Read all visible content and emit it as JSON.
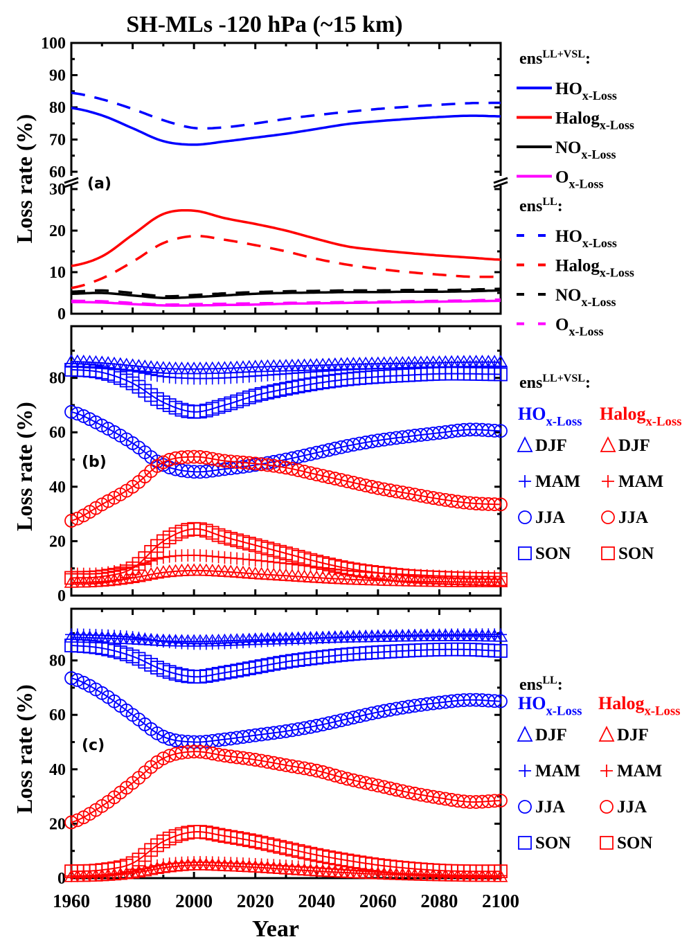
{
  "title": "SH-MLs  -120 hPa (~15 km)",
  "colors": {
    "HOx": "#0000ff",
    "Halog": "#ff0000",
    "NOx": "#000000",
    "Ox": "#ff00ff",
    "axis": "#000000"
  },
  "chart_data": [
    {
      "id": "a",
      "panel_label": "(a)",
      "type": "line",
      "xlabel": "",
      "ylabel": "Loss rate (%)",
      "xlim": [
        1960,
        2100
      ],
      "x_ticks": [
        1960,
        1980,
        2000,
        2020,
        2040,
        2060,
        2080,
        2100
      ],
      "broken_axis": true,
      "ylim_lower": [
        0,
        30
      ],
      "ylim_upper": [
        60,
        100
      ],
      "y_ticks_lower": [
        0,
        10,
        20,
        30
      ],
      "y_ticks_upper": [
        60,
        70,
        80,
        90,
        100
      ],
      "x": [
        1960,
        1970,
        1980,
        1990,
        2000,
        2010,
        2020,
        2030,
        2040,
        2050,
        2060,
        2070,
        2080,
        2090,
        2100
      ],
      "legend_groups": [
        {
          "title": "ens",
          "sup": "LL+VSL",
          "colon": ":",
          "dash": "solid"
        },
        {
          "title": "ens",
          "sup": "LL",
          "colon": ":",
          "dash": "dashed"
        }
      ],
      "series": [
        {
          "name": "HOx-Loss",
          "label_main": "HO",
          "label_sub": "x-Loss",
          "group": "ens LL+VSL",
          "color_key": "HOx",
          "dash": "solid",
          "values": [
            79.8,
            77.5,
            73.5,
            69.5,
            68.4,
            69.4,
            70.6,
            71.8,
            73.3,
            74.8,
            75.7,
            76.4,
            77.0,
            77.4,
            77.2
          ]
        },
        {
          "name": "Halogx-Loss",
          "label_main": "Halog",
          "label_sub": "x-Loss",
          "group": "ens LL+VSL",
          "color_key": "Halog",
          "dash": "solid",
          "values": [
            11.5,
            13.8,
            19.0,
            24.0,
            24.8,
            23.0,
            21.6,
            20.0,
            18.0,
            16.2,
            15.3,
            14.6,
            14.0,
            13.5,
            13.0
          ]
        },
        {
          "name": "NOx-Loss",
          "label_main": "NO",
          "label_sub": "x-Loss",
          "group": "ens LL+VSL",
          "color_key": "NOx",
          "dash": "solid",
          "values": [
            4.8,
            5.0,
            4.4,
            3.8,
            4.0,
            4.4,
            4.8,
            5.0,
            5.1,
            5.2,
            5.2,
            5.3,
            5.3,
            5.4,
            5.6
          ]
        },
        {
          "name": "Ox-Loss",
          "label_main": "O",
          "label_sub": "x-Loss",
          "group": "ens LL+VSL",
          "color_key": "Ox",
          "dash": "solid",
          "values": [
            2.8,
            2.7,
            2.3,
            2.0,
            2.0,
            2.1,
            2.2,
            2.4,
            2.5,
            2.6,
            2.7,
            2.8,
            2.9,
            3.0,
            3.1
          ]
        },
        {
          "name": "HOx-Loss",
          "label_main": "HO",
          "label_sub": "x-Loss",
          "group": "ens LL",
          "color_key": "HOx",
          "dash": "dashed",
          "values": [
            84.5,
            82.5,
            79.5,
            76.0,
            73.6,
            73.8,
            75.0,
            76.4,
            77.6,
            78.6,
            79.5,
            80.2,
            80.8,
            81.3,
            81.4
          ]
        },
        {
          "name": "Halogx-Loss",
          "label_main": "Halog",
          "label_sub": "x-Loss",
          "group": "ens LL",
          "color_key": "Halog",
          "dash": "dashed",
          "values": [
            6.2,
            8.5,
            12.5,
            17.0,
            18.7,
            17.8,
            16.5,
            15.0,
            13.2,
            11.8,
            10.8,
            10.0,
            9.4,
            8.9,
            8.9
          ]
        },
        {
          "name": "NOx-Loss",
          "label_main": "NO",
          "label_sub": "x-Loss",
          "group": "ens LL",
          "color_key": "NOx",
          "dash": "dashed",
          "values": [
            5.3,
            5.6,
            5.0,
            4.2,
            4.5,
            4.9,
            5.2,
            5.4,
            5.5,
            5.6,
            5.6,
            5.7,
            5.7,
            5.8,
            6.0
          ]
        },
        {
          "name": "Ox-Loss",
          "label_main": "O",
          "label_sub": "x-Loss",
          "group": "ens LL",
          "color_key": "Ox",
          "dash": "dashed",
          "values": [
            3.1,
            3.0,
            2.6,
            2.2,
            2.3,
            2.4,
            2.5,
            2.6,
            2.7,
            2.8,
            2.9,
            3.0,
            3.1,
            3.2,
            3.4
          ]
        }
      ]
    },
    {
      "id": "b",
      "panel_label": "(b)",
      "type": "scatter",
      "xlabel": "",
      "ylabel": "Loss rate (%)",
      "xlim": [
        1960,
        2100
      ],
      "ylim": [
        0,
        99
      ],
      "x_ticks": [
        1960,
        1980,
        2000,
        2020,
        2040,
        2060,
        2080,
        2100
      ],
      "y_ticks": [
        0,
        20,
        40,
        60,
        80
      ],
      "x": [
        1960,
        1970,
        1980,
        1990,
        2000,
        2010,
        2020,
        2030,
        2040,
        2050,
        2060,
        2070,
        2080,
        2090,
        2100
      ],
      "legend": {
        "title": "ens",
        "sup": "LL+VSL",
        "colon": ":",
        "col1_main": "HO",
        "col1_sub": "x-Loss",
        "col2_main": "Halog",
        "col2_sub": "x-Loss",
        "seasons": [
          "DJF",
          "MAM",
          "JJA",
          "SON"
        ]
      },
      "series": [
        {
          "name": "HOx-Loss DJF",
          "color_key": "HOx",
          "marker": "triangle",
          "values": [
            86.0,
            85.5,
            84.5,
            83.5,
            83.3,
            83.5,
            84.0,
            84.3,
            84.6,
            85.0,
            85.2,
            85.4,
            85.6,
            85.8,
            85.8
          ]
        },
        {
          "name": "HOx-Loss MAM",
          "color_key": "HOx",
          "marker": "plus",
          "values": [
            84.0,
            83.5,
            82.5,
            80.5,
            79.8,
            80.0,
            80.7,
            81.5,
            82.3,
            83.0,
            83.4,
            83.8,
            84.0,
            84.2,
            84.3
          ]
        },
        {
          "name": "HOx-Loss JJA",
          "color_key": "HOx",
          "marker": "circle",
          "values": [
            67.5,
            62.5,
            56.0,
            48.0,
            45.5,
            46.5,
            48.0,
            50.0,
            52.5,
            55.0,
            57.0,
            58.5,
            59.8,
            61.0,
            60.5
          ]
        },
        {
          "name": "HOx-Loss SON",
          "color_key": "HOx",
          "marker": "square",
          "values": [
            83.0,
            82.0,
            78.0,
            71.0,
            67.5,
            70.0,
            73.5,
            76.0,
            78.0,
            79.5,
            80.4,
            81.0,
            81.5,
            81.5,
            81.3
          ]
        },
        {
          "name": "Halogx-Loss DJF",
          "color_key": "Halog",
          "marker": "triangle",
          "values": [
            4.8,
            5.2,
            6.5,
            8.5,
            9.2,
            8.8,
            8.0,
            7.3,
            6.6,
            6.0,
            5.6,
            5.3,
            5.1,
            5.0,
            5.0
          ]
        },
        {
          "name": "Halogx-Loss MAM",
          "color_key": "Halog",
          "marker": "plus",
          "values": [
            8.0,
            8.2,
            10.5,
            14.0,
            14.8,
            14.0,
            13.0,
            11.8,
            10.5,
            9.2,
            8.3,
            7.7,
            7.2,
            7.0,
            7.0
          ]
        },
        {
          "name": "Halogx-Loss JJA",
          "color_key": "Halog",
          "marker": "circle",
          "values": [
            27.5,
            33.5,
            40.0,
            49.0,
            51.0,
            49.5,
            48.5,
            47.0,
            44.5,
            42.0,
            39.5,
            37.5,
            35.5,
            34.0,
            33.5
          ]
        },
        {
          "name": "Halogx-Loss SON",
          "color_key": "Halog",
          "marker": "square",
          "values": [
            6.5,
            7.0,
            10.0,
            20.0,
            24.5,
            21.5,
            18.5,
            15.5,
            12.5,
            10.0,
            8.4,
            7.2,
            6.6,
            6.2,
            6.0
          ]
        }
      ]
    },
    {
      "id": "c",
      "panel_label": "(c)",
      "type": "scatter",
      "xlabel": "Year",
      "ylabel": "Loss rate (%)",
      "xlim": [
        1960,
        2100
      ],
      "ylim": [
        0,
        99
      ],
      "x_ticks": [
        1960,
        1980,
        2000,
        2020,
        2040,
        2060,
        2080,
        2100
      ],
      "x_tick_labels": [
        "1960",
        "1980",
        "2000",
        "2020",
        "2040",
        "2060",
        "2080",
        "2100"
      ],
      "y_ticks": [
        0,
        20,
        40,
        60,
        80
      ],
      "x": [
        1960,
        1970,
        1980,
        1990,
        2000,
        2010,
        2020,
        2030,
        2040,
        2050,
        2060,
        2070,
        2080,
        2090,
        2100
      ],
      "legend": {
        "title": "ens",
        "sup": "LL",
        "colon": ":",
        "col1_main": "HO",
        "col1_sub": "x-Loss",
        "col2_main": "Halog",
        "col2_sub": "x-Loss",
        "seasons": [
          "DJF",
          "MAM",
          "JJA",
          "SON"
        ]
      },
      "series": [
        {
          "name": "HOx-Loss DJF",
          "color_key": "HOx",
          "marker": "triangle",
          "values": [
            88.5,
            88.2,
            87.8,
            87.2,
            87.0,
            87.2,
            87.6,
            87.9,
            88.2,
            88.5,
            88.7,
            88.9,
            89.0,
            89.0,
            88.8
          ]
        },
        {
          "name": "HOx-Loss MAM",
          "color_key": "HOx",
          "marker": "plus",
          "values": [
            89.5,
            89.2,
            88.5,
            87.0,
            86.2,
            86.4,
            87.0,
            87.6,
            88.2,
            88.7,
            89.0,
            89.2,
            89.4,
            89.5,
            89.5
          ]
        },
        {
          "name": "HOx-Loss JJA",
          "color_key": "HOx",
          "marker": "circle",
          "values": [
            73.5,
            68.0,
            60.0,
            52.0,
            50.0,
            51.0,
            52.5,
            54.0,
            56.0,
            58.5,
            61.0,
            63.0,
            64.5,
            65.5,
            65.0
          ]
        },
        {
          "name": "HOx-Loss SON",
          "color_key": "HOx",
          "marker": "square",
          "values": [
            85.5,
            84.5,
            81.5,
            76.5,
            74.0,
            75.5,
            77.5,
            79.5,
            81.0,
            82.2,
            83.0,
            83.6,
            84.0,
            84.0,
            83.5
          ]
        },
        {
          "name": "Halogx-Loss DJF",
          "color_key": "Halog",
          "marker": "triangle",
          "values": [
            0.5,
            0.8,
            1.8,
            3.8,
            4.8,
            4.5,
            4.0,
            3.3,
            2.6,
            2.0,
            1.5,
            1.1,
            0.8,
            0.6,
            0.5
          ]
        },
        {
          "name": "Halogx-Loss MAM",
          "color_key": "Halog",
          "marker": "plus",
          "values": [
            0.8,
            1.2,
            2.5,
            5.0,
            5.8,
            5.6,
            5.1,
            4.5,
            3.8,
            3.0,
            2.2,
            1.6,
            1.2,
            1.0,
            0.9
          ]
        },
        {
          "name": "Halogx-Loss JJA",
          "color_key": "Halog",
          "marker": "circle",
          "values": [
            20.5,
            26.5,
            35.0,
            44.0,
            46.5,
            45.0,
            43.5,
            41.5,
            39.5,
            36.5,
            34.0,
            31.5,
            29.5,
            28.0,
            28.5
          ]
        },
        {
          "name": "Halogx-Loss SON",
          "color_key": "Halog",
          "marker": "square",
          "values": [
            2.5,
            3.0,
            5.5,
            13.5,
            17.0,
            15.5,
            13.5,
            11.0,
            8.5,
            6.5,
            4.8,
            3.6,
            2.8,
            2.5,
            2.5
          ]
        }
      ]
    }
  ]
}
